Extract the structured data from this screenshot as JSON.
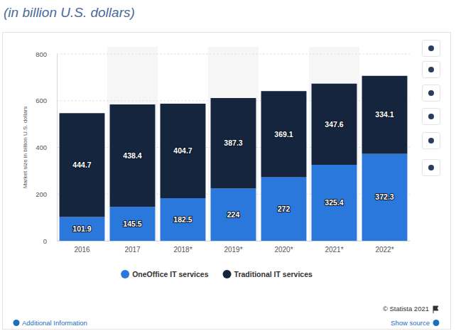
{
  "chart_data": {
    "type": "bar",
    "subtitle": "(in billion U.S. dollars)",
    "y_label": "Market size in billion U.S. dollars",
    "categories": [
      "2016",
      "2017",
      "2018*",
      "2019*",
      "2020*",
      "2021*",
      "2022*"
    ],
    "series": [
      {
        "name": "OneOffice IT services",
        "color": "#2a78dc",
        "values": [
          101.9,
          145.5,
          182.5,
          224,
          272,
          325.4,
          372.3
        ]
      },
      {
        "name": "Traditional IT services",
        "color": "#14253d",
        "values": [
          444.7,
          438.4,
          404.7,
          387.3,
          369.1,
          347.6,
          334.1
        ]
      }
    ],
    "ylim": [
      0,
      800
    ],
    "yticks": [
      0,
      200,
      400,
      600,
      800
    ],
    "grid": true,
    "stacked": true,
    "data_labels": true,
    "legend": "bottom",
    "annotations": [
      "© Statista 2021",
      "Additional Information",
      "Show source"
    ]
  }
}
